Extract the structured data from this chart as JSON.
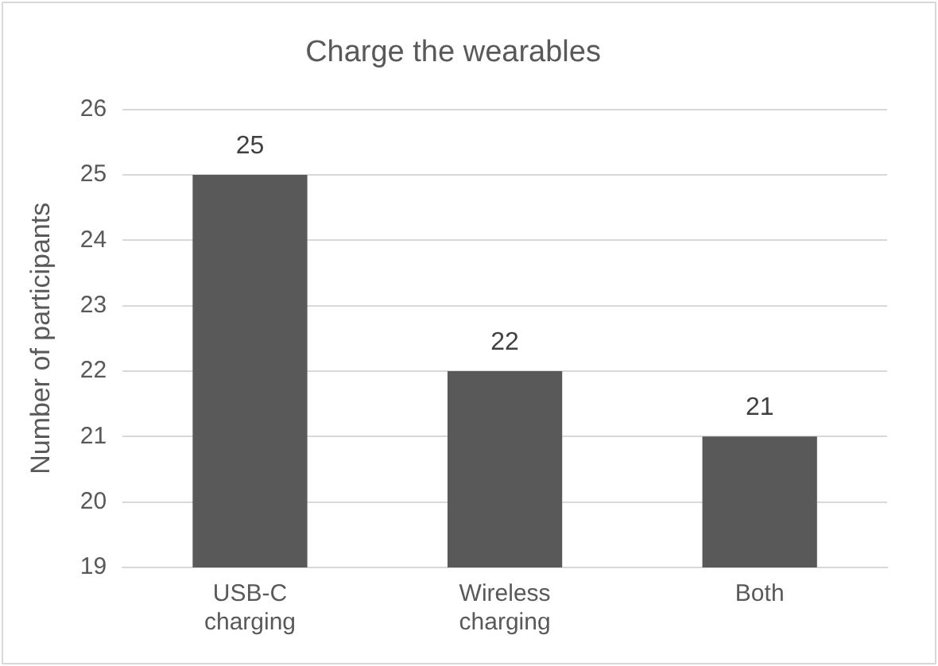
{
  "chart_data": {
    "type": "bar",
    "title": "Charge the wearables",
    "ylabel": "Number of participants",
    "categories": [
      "USB-C charging",
      "Wireless charging",
      "Both"
    ],
    "values": [
      25,
      22,
      21
    ],
    "color": "#595959",
    "ylim": [
      19,
      26
    ],
    "yticks": [
      19,
      20,
      21,
      22,
      23,
      24,
      25,
      26
    ],
    "grid": "y",
    "data_labels": true
  }
}
